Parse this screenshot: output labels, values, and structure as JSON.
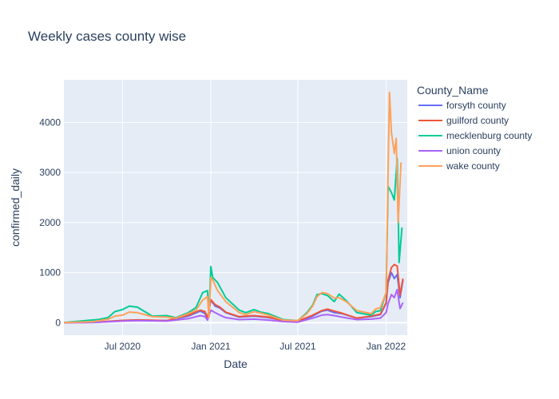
{
  "chart_data": {
    "type": "line",
    "title": "Weekly cases county wise",
    "xlabel": "Date",
    "ylabel": "confirmed_daily",
    "x_range": [
      "2020-03-01",
      "2022-02-14"
    ],
    "ylim": [
      -250,
      4850
    ],
    "x_ticks": [
      {
        "date": "2020-07-01",
        "label": "Jul 2020"
      },
      {
        "date": "2021-01-01",
        "label": "Jan 2021"
      },
      {
        "date": "2021-07-01",
        "label": "Jul 2021"
      },
      {
        "date": "2022-01-01",
        "label": "Jan 2022"
      }
    ],
    "y_ticks": [
      {
        "value": 0,
        "label": "0"
      },
      {
        "value": 1000,
        "label": "1000"
      },
      {
        "value": 2000,
        "label": "2000"
      },
      {
        "value": 3000,
        "label": "3000"
      },
      {
        "value": 4000,
        "label": "4000"
      }
    ],
    "grid": true,
    "legend": {
      "title": "County_Name",
      "position": "right"
    },
    "series": [
      {
        "name": "forsyth county",
        "color": "#636efa",
        "points": [
          [
            "2020-03-01",
            0
          ],
          [
            "2020-05-01",
            5
          ],
          [
            "2020-07-01",
            40
          ],
          [
            "2020-08-01",
            50
          ],
          [
            "2020-10-01",
            40
          ],
          [
            "2020-11-15",
            130
          ],
          [
            "2020-12-10",
            230
          ],
          [
            "2020-12-20",
            180
          ],
          [
            "2020-12-25",
            80
          ],
          [
            "2021-01-01",
            450
          ],
          [
            "2021-01-10",
            330
          ],
          [
            "2021-01-20",
            290
          ],
          [
            "2021-02-01",
            200
          ],
          [
            "2021-03-01",
            110
          ],
          [
            "2021-04-01",
            130
          ],
          [
            "2021-05-01",
            100
          ],
          [
            "2021-06-01",
            40
          ],
          [
            "2021-07-01",
            20
          ],
          [
            "2021-08-01",
            130
          ],
          [
            "2021-08-20",
            230
          ],
          [
            "2021-09-01",
            250
          ],
          [
            "2021-09-15",
            200
          ],
          [
            "2021-10-01",
            180
          ],
          [
            "2021-11-01",
            90
          ],
          [
            "2021-12-01",
            120
          ],
          [
            "2021-12-20",
            160
          ],
          [
            "2022-01-01",
            380
          ],
          [
            "2022-01-05",
            800
          ],
          [
            "2022-01-12",
            1000
          ],
          [
            "2022-01-18",
            880
          ],
          [
            "2022-01-24",
            960
          ],
          [
            "2022-01-30",
            500
          ],
          [
            "2022-02-05",
            850
          ]
        ]
      },
      {
        "name": "guilford county",
        "color": "#ef553b",
        "points": [
          [
            "2020-03-01",
            0
          ],
          [
            "2020-05-01",
            5
          ],
          [
            "2020-07-01",
            45
          ],
          [
            "2020-08-01",
            55
          ],
          [
            "2020-10-01",
            40
          ],
          [
            "2020-11-15",
            150
          ],
          [
            "2020-12-10",
            250
          ],
          [
            "2020-12-20",
            220
          ],
          [
            "2020-12-25",
            90
          ],
          [
            "2021-01-01",
            460
          ],
          [
            "2021-01-10",
            360
          ],
          [
            "2021-01-20",
            310
          ],
          [
            "2021-02-01",
            210
          ],
          [
            "2021-03-01",
            120
          ],
          [
            "2021-04-01",
            140
          ],
          [
            "2021-05-01",
            110
          ],
          [
            "2021-06-01",
            40
          ],
          [
            "2021-07-01",
            30
          ],
          [
            "2021-08-01",
            150
          ],
          [
            "2021-08-20",
            240
          ],
          [
            "2021-09-01",
            270
          ],
          [
            "2021-09-15",
            230
          ],
          [
            "2021-10-01",
            190
          ],
          [
            "2021-11-01",
            90
          ],
          [
            "2021-12-01",
            130
          ],
          [
            "2021-12-20",
            170
          ],
          [
            "2022-01-01",
            400
          ],
          [
            "2022-01-05",
            850
          ],
          [
            "2022-01-12",
            1100
          ],
          [
            "2022-01-18",
            1160
          ],
          [
            "2022-01-24",
            1130
          ],
          [
            "2022-01-30",
            550
          ],
          [
            "2022-02-05",
            880
          ]
        ]
      },
      {
        "name": "mecklenburg county",
        "color": "#00cc96",
        "points": [
          [
            "2020-03-01",
            0
          ],
          [
            "2020-04-15",
            40
          ],
          [
            "2020-05-10",
            60
          ],
          [
            "2020-06-01",
            100
          ],
          [
            "2020-06-15",
            220
          ],
          [
            "2020-07-01",
            260
          ],
          [
            "2020-07-15",
            330
          ],
          [
            "2020-08-01",
            310
          ],
          [
            "2020-08-20",
            200
          ],
          [
            "2020-09-01",
            130
          ],
          [
            "2020-10-01",
            140
          ],
          [
            "2020-10-20",
            100
          ],
          [
            "2020-11-15",
            200
          ],
          [
            "2020-12-01",
            300
          ],
          [
            "2020-12-15",
            600
          ],
          [
            "2020-12-25",
            640
          ],
          [
            "2020-12-28",
            120
          ],
          [
            "2021-01-01",
            1120
          ],
          [
            "2021-01-05",
            900
          ],
          [
            "2021-01-15",
            800
          ],
          [
            "2021-02-01",
            500
          ],
          [
            "2021-03-01",
            250
          ],
          [
            "2021-03-15",
            200
          ],
          [
            "2021-04-01",
            260
          ],
          [
            "2021-04-15",
            210
          ],
          [
            "2021-05-01",
            180
          ],
          [
            "2021-06-01",
            60
          ],
          [
            "2021-07-01",
            40
          ],
          [
            "2021-07-20",
            200
          ],
          [
            "2021-08-01",
            350
          ],
          [
            "2021-08-10",
            560
          ],
          [
            "2021-08-20",
            580
          ],
          [
            "2021-09-01",
            540
          ],
          [
            "2021-09-15",
            420
          ],
          [
            "2021-09-25",
            570
          ],
          [
            "2021-10-10",
            440
          ],
          [
            "2021-11-01",
            200
          ],
          [
            "2021-12-01",
            150
          ],
          [
            "2021-12-10",
            220
          ],
          [
            "2021-12-20",
            240
          ],
          [
            "2022-01-01",
            600
          ],
          [
            "2022-01-05",
            2720
          ],
          [
            "2022-01-12",
            2600
          ],
          [
            "2022-01-18",
            2450
          ],
          [
            "2022-01-24",
            3280
          ],
          [
            "2022-01-28",
            1200
          ],
          [
            "2022-02-03",
            1900
          ]
        ]
      },
      {
        "name": "union county",
        "color": "#ab63fa",
        "points": [
          [
            "2020-03-01",
            0
          ],
          [
            "2020-05-01",
            3
          ],
          [
            "2020-07-01",
            30
          ],
          [
            "2020-08-01",
            40
          ],
          [
            "2020-10-01",
            30
          ],
          [
            "2020-11-15",
            80
          ],
          [
            "2020-12-10",
            140
          ],
          [
            "2020-12-20",
            120
          ],
          [
            "2020-12-25",
            50
          ],
          [
            "2021-01-01",
            250
          ],
          [
            "2021-01-10",
            200
          ],
          [
            "2021-01-20",
            150
          ],
          [
            "2021-02-01",
            100
          ],
          [
            "2021-03-01",
            60
          ],
          [
            "2021-04-01",
            70
          ],
          [
            "2021-05-01",
            50
          ],
          [
            "2021-06-01",
            20
          ],
          [
            "2021-07-01",
            10
          ],
          [
            "2021-08-01",
            90
          ],
          [
            "2021-08-20",
            150
          ],
          [
            "2021-09-01",
            160
          ],
          [
            "2021-09-15",
            140
          ],
          [
            "2021-10-01",
            110
          ],
          [
            "2021-11-01",
            60
          ],
          [
            "2021-12-01",
            70
          ],
          [
            "2021-12-20",
            90
          ],
          [
            "2022-01-01",
            200
          ],
          [
            "2022-01-05",
            380
          ],
          [
            "2022-01-12",
            560
          ],
          [
            "2022-01-18",
            500
          ],
          [
            "2022-01-24",
            660
          ],
          [
            "2022-01-30",
            280
          ],
          [
            "2022-02-05",
            400
          ]
        ]
      },
      {
        "name": "wake county",
        "color": "#ffa15a",
        "points": [
          [
            "2020-03-01",
            0
          ],
          [
            "2020-05-01",
            20
          ],
          [
            "2020-06-01",
            70
          ],
          [
            "2020-06-15",
            130
          ],
          [
            "2020-07-01",
            150
          ],
          [
            "2020-07-15",
            210
          ],
          [
            "2020-08-01",
            200
          ],
          [
            "2020-08-20",
            150
          ],
          [
            "2020-09-01",
            120
          ],
          [
            "2020-10-01",
            110
          ],
          [
            "2020-10-20",
            90
          ],
          [
            "2020-11-15",
            180
          ],
          [
            "2020-12-01",
            250
          ],
          [
            "2020-12-15",
            450
          ],
          [
            "2020-12-25",
            520
          ],
          [
            "2020-12-28",
            100
          ],
          [
            "2021-01-01",
            900
          ],
          [
            "2021-01-05",
            850
          ],
          [
            "2021-01-15",
            640
          ],
          [
            "2021-02-01",
            420
          ],
          [
            "2021-03-01",
            200
          ],
          [
            "2021-03-15",
            160
          ],
          [
            "2021-04-01",
            220
          ],
          [
            "2021-04-15",
            190
          ],
          [
            "2021-05-01",
            150
          ],
          [
            "2021-06-01",
            50
          ],
          [
            "2021-07-01",
            40
          ],
          [
            "2021-07-20",
            180
          ],
          [
            "2021-08-01",
            330
          ],
          [
            "2021-08-10",
            520
          ],
          [
            "2021-08-20",
            600
          ],
          [
            "2021-09-01",
            580
          ],
          [
            "2021-09-15",
            490
          ],
          [
            "2021-09-25",
            500
          ],
          [
            "2021-10-10",
            420
          ],
          [
            "2021-11-01",
            240
          ],
          [
            "2021-12-01",
            180
          ],
          [
            "2021-12-10",
            270
          ],
          [
            "2021-12-20",
            300
          ],
          [
            "2022-01-01",
            600
          ],
          [
            "2022-01-05",
            3000
          ],
          [
            "2022-01-08",
            4600
          ],
          [
            "2022-01-12",
            3800
          ],
          [
            "2022-01-18",
            3380
          ],
          [
            "2022-01-22",
            3680
          ],
          [
            "2022-01-26",
            2000
          ],
          [
            "2022-02-01",
            3200
          ]
        ]
      }
    ]
  }
}
